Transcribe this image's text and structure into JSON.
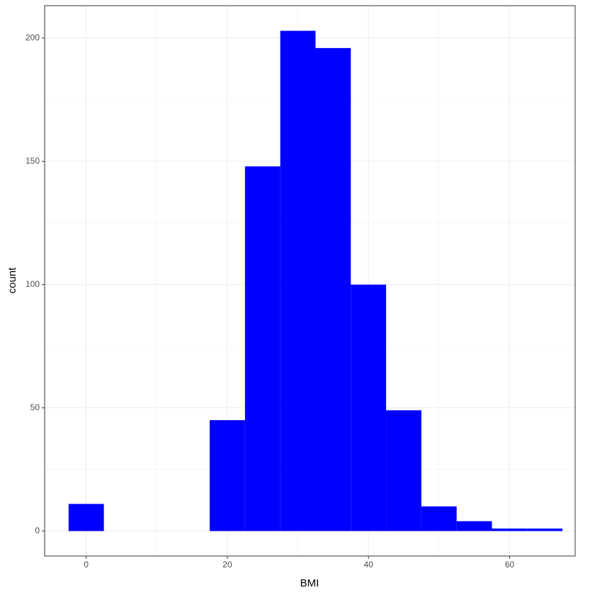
{
  "chart_data": {
    "type": "histogram",
    "xlabel": "BMI",
    "ylabel": "count",
    "bins": [
      -2.5,
      2.5,
      7.5,
      12.5,
      17.5,
      22.5,
      27.5,
      32.5,
      37.5,
      42.5,
      47.5,
      52.5,
      57.5,
      62.5,
      67.5
    ],
    "values": [
      11,
      0,
      0,
      0,
      45,
      148,
      203,
      196,
      100,
      49,
      10,
      4,
      1,
      1
    ],
    "color": "#0000ff",
    "xlim": [
      -5.9,
      69.3
    ],
    "ylim": [
      -10.15,
      213.2
    ],
    "xticks": [
      0,
      20,
      40,
      60
    ],
    "yticks": [
      0,
      50,
      100,
      150,
      200
    ],
    "xminor": [
      10,
      30,
      50
    ],
    "yminor": [
      25,
      75,
      125,
      175
    ],
    "grid": true
  }
}
